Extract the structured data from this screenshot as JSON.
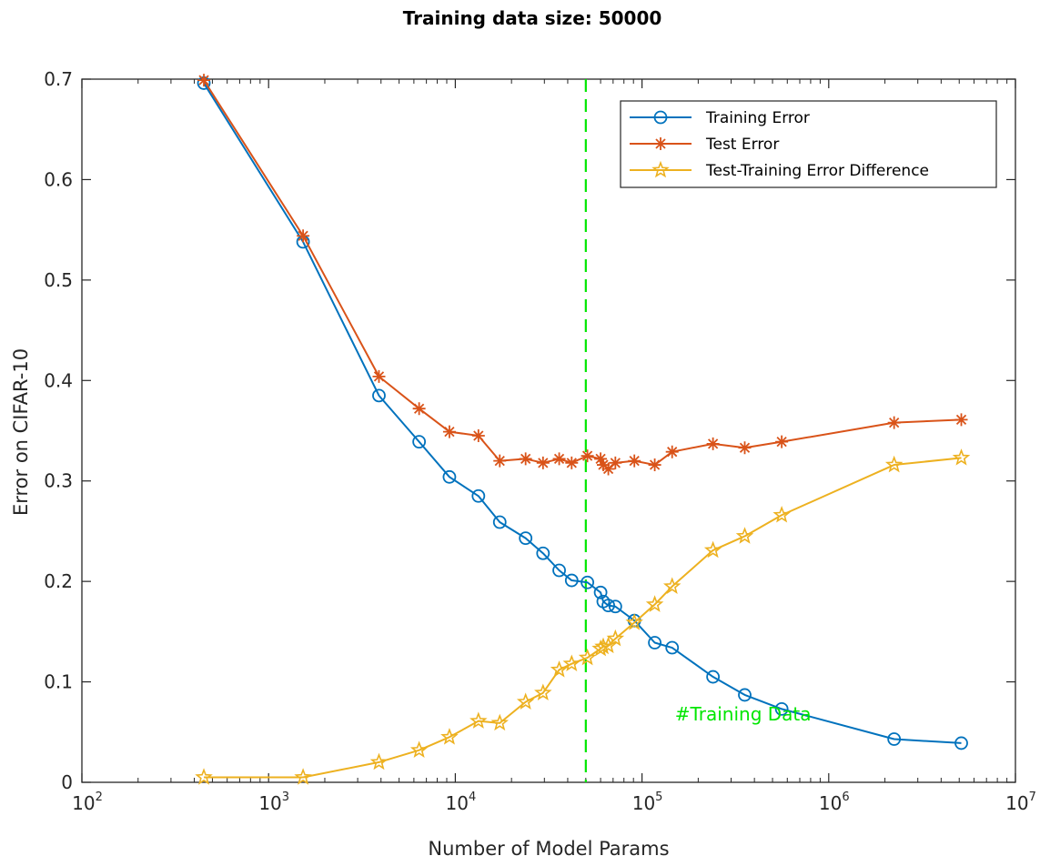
{
  "chart_data": {
    "type": "line",
    "title": "Training data size: 50000",
    "xlabel": "Number of Model Params",
    "ylabel": "Error on CIFAR-10",
    "xscale": "log",
    "xlim": [
      100,
      10000000
    ],
    "ylim": [
      0,
      0.7
    ],
    "xticks": [
      {
        "base": "10",
        "exp": "2"
      },
      {
        "base": "10",
        "exp": "3"
      },
      {
        "base": "10",
        "exp": "4"
      },
      {
        "base": "10",
        "exp": "5"
      },
      {
        "base": "10",
        "exp": "6"
      },
      {
        "base": "10",
        "exp": "7"
      }
    ],
    "yticks": [
      "0",
      "0.1",
      "0.2",
      "0.3",
      "0.4",
      "0.5",
      "0.6",
      "0.7"
    ],
    "grid": false,
    "legend_position": "top-right",
    "colors": {
      "training": "#0072BD",
      "test": "#D95319",
      "diff": "#EDB120",
      "vline": "#00E600"
    },
    "series": [
      {
        "name": "Training Error",
        "marker": "circle",
        "x": [
          450,
          1530,
          3900,
          6400,
          9300,
          13300,
          17300,
          23800,
          29500,
          36000,
          42000,
          51000,
          60000,
          62000,
          66000,
          72000,
          91000,
          117000,
          145000,
          240000,
          355000,
          560000,
          2240000,
          5130000
        ],
        "y": [
          0.696,
          0.538,
          0.385,
          0.339,
          0.304,
          0.285,
          0.259,
          0.243,
          0.228,
          0.211,
          0.201,
          0.199,
          0.189,
          0.18,
          0.176,
          0.175,
          0.161,
          0.139,
          0.134,
          0.105,
          0.087,
          0.073,
          0.043,
          0.039
        ]
      },
      {
        "name": "Test Error",
        "marker": "asterisk",
        "x": [
          450,
          1530,
          3900,
          6400,
          9300,
          13300,
          17300,
          23800,
          29500,
          36000,
          42000,
          51000,
          60000,
          62000,
          66000,
          72000,
          91000,
          117000,
          145000,
          240000,
          355000,
          560000,
          2240000,
          5130000
        ],
        "y": [
          0.699,
          0.544,
          0.404,
          0.372,
          0.349,
          0.345,
          0.32,
          0.322,
          0.318,
          0.322,
          0.318,
          0.325,
          0.322,
          0.316,
          0.312,
          0.318,
          0.32,
          0.316,
          0.329,
          0.337,
          0.333,
          0.339,
          0.358,
          0.361
        ]
      },
      {
        "name": "Test-Training Error Difference",
        "marker": "star",
        "x": [
          450,
          1530,
          3900,
          6400,
          9300,
          13300,
          17300,
          23800,
          29500,
          36000,
          42000,
          51000,
          60000,
          62000,
          66000,
          72000,
          91000,
          117000,
          145000,
          240000,
          355000,
          560000,
          2240000,
          5130000
        ],
        "y": [
          0.005,
          0.005,
          0.02,
          0.032,
          0.045,
          0.061,
          0.059,
          0.08,
          0.089,
          0.112,
          0.118,
          0.124,
          0.133,
          0.135,
          0.136,
          0.143,
          0.159,
          0.177,
          0.195,
          0.231,
          0.245,
          0.266,
          0.316,
          0.323
        ]
      }
    ],
    "vline": {
      "x": 50000,
      "style": "dashed"
    },
    "annotation": {
      "text": "#Training Data",
      "x": 150000,
      "y": 0.068
    }
  }
}
